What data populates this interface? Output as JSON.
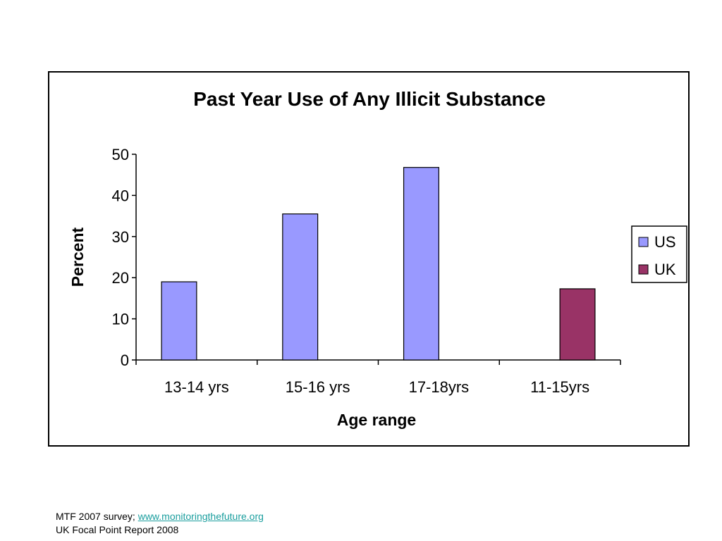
{
  "chart_data": {
    "type": "bar",
    "title": "Past Year Use of Any Illicit Substance",
    "xlabel": "Age range",
    "ylabel": "Percent",
    "categories": [
      "13-14 yrs",
      "15-16 yrs",
      "17-18yrs",
      "11-15yrs"
    ],
    "series": [
      {
        "name": "US",
        "color": "#9999ff",
        "values": [
          19,
          35.5,
          46.8,
          null
        ]
      },
      {
        "name": "UK",
        "color": "#993366",
        "values": [
          null,
          null,
          null,
          17.3
        ]
      }
    ],
    "ylim": [
      0,
      50
    ],
    "yticks": [
      "0",
      "10",
      "20",
      "30",
      "40",
      "50"
    ],
    "grid": false,
    "legend_position": "right"
  },
  "footer": {
    "line1_prefix": "MTF 2007 survey; ",
    "line1_link": "www.monitoringthefuture.org",
    "line2": "UK Focal Point Report 2008"
  }
}
